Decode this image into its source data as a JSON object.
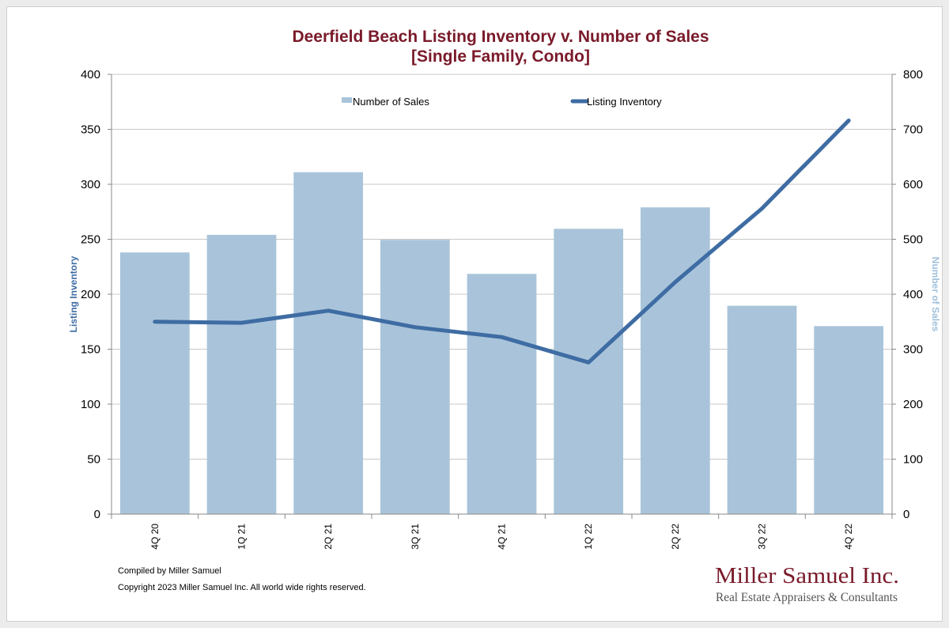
{
  "colors": {
    "title": "#7a1a2a",
    "bars": "#a9c4da",
    "line": "#3e6ca3",
    "left_axis_title": "#3e6ca3",
    "right_axis_title": "#9fc0db",
    "grid": "#c8c8c8",
    "logo": "#7a1a2a",
    "tagline": "#555555"
  },
  "chart_data": {
    "type": "bar",
    "title": "Deerfield Beach Listing Inventory v. Number of Sales",
    "subtitle": "[Single Family, Condo]",
    "categories": [
      "4Q 20",
      "1Q 21",
      "2Q 21",
      "3Q 21",
      "4Q 21",
      "1Q 22",
      "2Q 22",
      "3Q 22",
      "4Q 22"
    ],
    "series": [
      {
        "name": "Number of Sales",
        "type": "bar",
        "axis": "right",
        "values": [
          476,
          508,
          622,
          499,
          437,
          519,
          558,
          379,
          342
        ]
      },
      {
        "name": "Listing Inventory",
        "type": "line",
        "axis": "left",
        "values": [
          175,
          174,
          185,
          170,
          161,
          138,
          211,
          278,
          358
        ]
      }
    ],
    "left_axis": {
      "label": "Listing Inventory",
      "ylim": [
        0,
        400
      ],
      "ticks": [
        "0",
        "50",
        "100",
        "150",
        "200",
        "250",
        "300",
        "350",
        "400"
      ]
    },
    "right_axis": {
      "label": "Number of Sales",
      "ylim": [
        0,
        800
      ],
      "ticks": [
        "0",
        "100",
        "200",
        "300",
        "400",
        "500",
        "600",
        "700",
        "800"
      ]
    },
    "grid": true,
    "legend_position": "top"
  },
  "footer": {
    "compiled": "Compiled by Miller Samuel",
    "copyright": "Copyright 2023 Miller Samuel Inc.  All world wide rights reserved."
  },
  "logo": {
    "name": "Miller Samuel Inc.",
    "tagline": "Real Estate Appraisers & Consultants"
  }
}
